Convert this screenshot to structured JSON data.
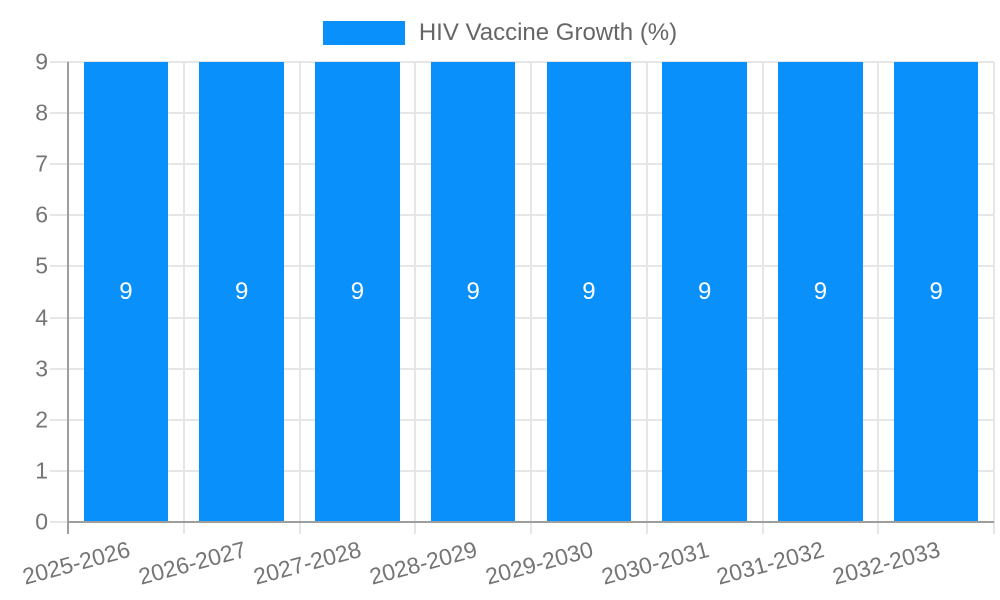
{
  "chart_data": {
    "type": "bar",
    "legend": {
      "label": "HIV Vaccine Growth (%)",
      "position": "top"
    },
    "categories": [
      "2025-2026",
      "2026-2027",
      "2027-2028",
      "2028-2029",
      "2029-2030",
      "2030-2031",
      "2031-2032",
      "2032-2033"
    ],
    "series": [
      {
        "name": "HIV Vaccine Growth (%)",
        "values": [
          9,
          9,
          9,
          9,
          9,
          9,
          9,
          9
        ]
      }
    ],
    "bar_value_labels": [
      "9",
      "9",
      "9",
      "9",
      "9",
      "9",
      "9",
      "9"
    ],
    "xlabel": "",
    "ylabel": "",
    "ylim": [
      0,
      9
    ],
    "ytick_step": 1,
    "yticks": [
      "0",
      "1",
      "2",
      "3",
      "4",
      "5",
      "6",
      "7",
      "8",
      "9"
    ],
    "grid": true,
    "x_label_rotation_deg": -15,
    "colors": {
      "bar": "#0a90fa",
      "grid": "#e6e6e6",
      "axis": "#9e9e9e",
      "axis_text": "#757575",
      "legend_text": "#666666",
      "bar_label_text": "#ffffff",
      "background": "#ffffff"
    }
  }
}
